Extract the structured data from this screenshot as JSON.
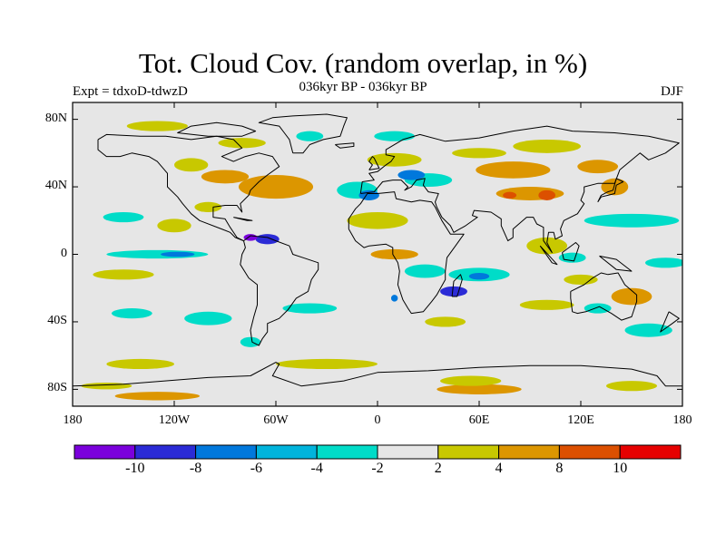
{
  "header": {
    "title": "Tot. Cloud Cov. (random overlap, in %)",
    "subtitle": "036kyr BP - 036kyr BP",
    "experiment": "Expt = tdxoD-tdwzD",
    "season": "DJF"
  },
  "map": {
    "projection": "cylindrical-equidistant",
    "background_color": "#e6e6e6",
    "lon_range": [
      -180,
      180
    ],
    "lat_range": [
      -90,
      90
    ],
    "lat_ticks": [
      {
        "value": 80,
        "label": "80N"
      },
      {
        "value": 40,
        "label": "40N"
      },
      {
        "value": 0,
        "label": "0"
      },
      {
        "value": -40,
        "label": "40S"
      },
      {
        "value": -80,
        "label": "80S"
      }
    ],
    "lon_ticks": [
      {
        "value": -180,
        "label": "180"
      },
      {
        "value": -120,
        "label": "120W"
      },
      {
        "value": -60,
        "label": "60W"
      },
      {
        "value": 0,
        "label": "0"
      },
      {
        "value": 60,
        "label": "60E"
      },
      {
        "value": 120,
        "label": "120E"
      },
      {
        "value": 180,
        "label": "180"
      }
    ]
  },
  "colorbar": {
    "colors": [
      "#7b00dc",
      "#2b2bd6",
      "#0078dc",
      "#00b4dc",
      "#00dcc8",
      "#e6e6e6",
      "#c8c800",
      "#dc9600",
      "#dc5000",
      "#e60000"
    ],
    "labels": [
      "-10",
      "-8",
      "-6",
      "-4",
      "-2",
      "2",
      "4",
      "8",
      "10"
    ]
  },
  "anomalies": [
    {
      "lon": -60,
      "lat": 40,
      "rx": 22,
      "ry": 7,
      "color": "#dc9600"
    },
    {
      "lon": -90,
      "lat": 46,
      "rx": 14,
      "ry": 4,
      "color": "#dc9600"
    },
    {
      "lon": -110,
      "lat": 53,
      "rx": 10,
      "ry": 4,
      "color": "#c8c800"
    },
    {
      "lon": -80,
      "lat": 66,
      "rx": 14,
      "ry": 3,
      "color": "#c8c800"
    },
    {
      "lon": -130,
      "lat": 76,
      "rx": 18,
      "ry": 3,
      "color": "#c8c800"
    },
    {
      "lon": -40,
      "lat": 70,
      "rx": 8,
      "ry": 3,
      "color": "#00dcc8"
    },
    {
      "lon": -150,
      "lat": 22,
      "rx": 12,
      "ry": 3,
      "color": "#00dcc8"
    },
    {
      "lon": -120,
      "lat": 17,
      "rx": 10,
      "ry": 4,
      "color": "#c8c800"
    },
    {
      "lon": -100,
      "lat": 28,
      "rx": 8,
      "ry": 3,
      "color": "#c8c800"
    },
    {
      "lon": -130,
      "lat": 0,
      "rx": 30,
      "ry": 2.5,
      "color": "#00dcc8"
    },
    {
      "lon": -118,
      "lat": 0,
      "rx": 10,
      "ry": 1.5,
      "color": "#0078dc"
    },
    {
      "lon": -65,
      "lat": 9,
      "rx": 7,
      "ry": 3,
      "color": "#2b2bd6"
    },
    {
      "lon": -75,
      "lat": 10,
      "rx": 4,
      "ry": 2,
      "color": "#7b00dc"
    },
    {
      "lon": -150,
      "lat": -12,
      "rx": 18,
      "ry": 3,
      "color": "#c8c800"
    },
    {
      "lon": -145,
      "lat": -35,
      "rx": 12,
      "ry": 3,
      "color": "#00dcc8"
    },
    {
      "lon": -100,
      "lat": -38,
      "rx": 14,
      "ry": 4,
      "color": "#00dcc8"
    },
    {
      "lon": -40,
      "lat": -32,
      "rx": 16,
      "ry": 3,
      "color": "#00dcc8"
    },
    {
      "lon": -140,
      "lat": -65,
      "rx": 20,
      "ry": 3,
      "color": "#c8c800"
    },
    {
      "lon": -30,
      "lat": -65,
      "rx": 30,
      "ry": 3,
      "color": "#c8c800"
    },
    {
      "lon": -75,
      "lat": -52,
      "rx": 6,
      "ry": 3,
      "color": "#00dcc8"
    },
    {
      "lon": -160,
      "lat": -78,
      "rx": 15,
      "ry": 2,
      "color": "#c8c800"
    },
    {
      "lon": -130,
      "lat": -84,
      "rx": 25,
      "ry": 2.5,
      "color": "#dc9600"
    },
    {
      "lon": 60,
      "lat": -80,
      "rx": 25,
      "ry": 3,
      "color": "#dc9600"
    },
    {
      "lon": 55,
      "lat": -75,
      "rx": 18,
      "ry": 3,
      "color": "#c8c800"
    },
    {
      "lon": 150,
      "lat": -78,
      "rx": 15,
      "ry": 3,
      "color": "#c8c800"
    },
    {
      "lon": -12,
      "lat": 38,
      "rx": 12,
      "ry": 5,
      "color": "#00dcc8"
    },
    {
      "lon": -5,
      "lat": 35,
      "rx": 6,
      "ry": 3,
      "color": "#0078dc"
    },
    {
      "lon": 10,
      "lat": 56,
      "rx": 16,
      "ry": 4,
      "color": "#c8c800"
    },
    {
      "lon": 10,
      "lat": 70,
      "rx": 12,
      "ry": 3,
      "color": "#00dcc8"
    },
    {
      "lon": 30,
      "lat": 44,
      "rx": 14,
      "ry": 4,
      "color": "#00dcc8"
    },
    {
      "lon": 20,
      "lat": 47,
      "rx": 8,
      "ry": 3,
      "color": "#0078dc"
    },
    {
      "lon": 80,
      "lat": 50,
      "rx": 22,
      "ry": 5,
      "color": "#dc9600"
    },
    {
      "lon": 60,
      "lat": 60,
      "rx": 16,
      "ry": 3,
      "color": "#c8c800"
    },
    {
      "lon": 100,
      "lat": 64,
      "rx": 20,
      "ry": 4,
      "color": "#c8c800"
    },
    {
      "lon": 130,
      "lat": 52,
      "rx": 12,
      "ry": 4,
      "color": "#dc9600"
    },
    {
      "lon": 90,
      "lat": 36,
      "rx": 20,
      "ry": 4,
      "color": "#dc9600"
    },
    {
      "lon": 100,
      "lat": 35,
      "rx": 5,
      "ry": 3,
      "color": "#dc5000"
    },
    {
      "lon": 78,
      "lat": 35,
      "rx": 4,
      "ry": 2,
      "color": "#dc5000"
    },
    {
      "lon": 140,
      "lat": 40,
      "rx": 8,
      "ry": 5,
      "color": "#dc9600"
    },
    {
      "lon": 150,
      "lat": 20,
      "rx": 28,
      "ry": 4,
      "color": "#00dcc8"
    },
    {
      "lon": 170,
      "lat": -5,
      "rx": 12,
      "ry": 3,
      "color": "#00dcc8"
    },
    {
      "lon": 0,
      "lat": 20,
      "rx": 18,
      "ry": 5,
      "color": "#c8c800"
    },
    {
      "lon": 10,
      "lat": 0,
      "rx": 14,
      "ry": 3,
      "color": "#dc9600"
    },
    {
      "lon": 28,
      "lat": -10,
      "rx": 12,
      "ry": 4,
      "color": "#00dcc8"
    },
    {
      "lon": 60,
      "lat": -12,
      "rx": 18,
      "ry": 4,
      "color": "#00dcc8"
    },
    {
      "lon": 60,
      "lat": -13,
      "rx": 6,
      "ry": 2,
      "color": "#0078dc"
    },
    {
      "lon": 45,
      "lat": -22,
      "rx": 8,
      "ry": 3,
      "color": "#2b2bd6"
    },
    {
      "lon": 10,
      "lat": -26,
      "rx": 2,
      "ry": 2,
      "color": "#0078dc"
    },
    {
      "lon": 40,
      "lat": -40,
      "rx": 12,
      "ry": 3,
      "color": "#c8c800"
    },
    {
      "lon": 100,
      "lat": -30,
      "rx": 16,
      "ry": 3,
      "color": "#c8c800"
    },
    {
      "lon": 150,
      "lat": -25,
      "rx": 12,
      "ry": 5,
      "color": "#dc9600"
    },
    {
      "lon": 120,
      "lat": -15,
      "rx": 10,
      "ry": 3,
      "color": "#c8c800"
    },
    {
      "lon": 130,
      "lat": -32,
      "rx": 8,
      "ry": 3,
      "color": "#00dcc8"
    },
    {
      "lon": 100,
      "lat": 5,
      "rx": 12,
      "ry": 5,
      "color": "#c8c800"
    },
    {
      "lon": 115,
      "lat": -2,
      "rx": 8,
      "ry": 3,
      "color": "#00dcc8"
    },
    {
      "lon": 160,
      "lat": -45,
      "rx": 14,
      "ry": 4,
      "color": "#00dcc8"
    }
  ],
  "coastlines": [
    [
      [
        -165,
        68
      ],
      [
        -160,
        71
      ],
      [
        -140,
        70
      ],
      [
        -125,
        70
      ],
      [
        -110,
        68
      ],
      [
        -95,
        70
      ],
      [
        -85,
        68
      ],
      [
        -80,
        63
      ],
      [
        -92,
        58
      ],
      [
        -85,
        55
      ],
      [
        -78,
        58
      ],
      [
        -70,
        60
      ],
      [
        -62,
        58
      ],
      [
        -58,
        52
      ],
      [
        -65,
        47
      ],
      [
        -70,
        43
      ],
      [
        -75,
        38
      ],
      [
        -76,
        35
      ],
      [
        -81,
        30
      ],
      [
        -80,
        25
      ],
      [
        -83,
        29
      ],
      [
        -90,
        29
      ],
      [
        -97,
        28
      ],
      [
        -97,
        22
      ],
      [
        -90,
        21
      ],
      [
        -87,
        16
      ],
      [
        -83,
        10
      ],
      [
        -79,
        8
      ],
      [
        -84,
        10
      ],
      [
        -87,
        13
      ],
      [
        -92,
        15
      ],
      [
        -105,
        20
      ],
      [
        -110,
        24
      ],
      [
        -115,
        30
      ],
      [
        -118,
        34
      ],
      [
        -124,
        40
      ],
      [
        -124,
        48
      ],
      [
        -130,
        55
      ],
      [
        -135,
        58
      ],
      [
        -145,
        60
      ],
      [
        -152,
        58
      ],
      [
        -160,
        58
      ],
      [
        -165,
        62
      ],
      [
        -165,
        68
      ]
    ],
    [
      [
        -79,
        8
      ],
      [
        -75,
        11
      ],
      [
        -65,
        10
      ],
      [
        -60,
        8
      ],
      [
        -52,
        5
      ],
      [
        -50,
        0
      ],
      [
        -44,
        -2
      ],
      [
        -35,
        -5
      ],
      [
        -35,
        -9
      ],
      [
        -39,
        -15
      ],
      [
        -41,
        -22
      ],
      [
        -48,
        -26
      ],
      [
        -53,
        -33
      ],
      [
        -58,
        -38
      ],
      [
        -65,
        -41
      ],
      [
        -65,
        -46
      ],
      [
        -68,
        -50
      ],
      [
        -70,
        -54
      ],
      [
        -74,
        -52
      ],
      [
        -75,
        -45
      ],
      [
        -73,
        -37
      ],
      [
        -71,
        -30
      ],
      [
        -71,
        -18
      ],
      [
        -76,
        -14
      ],
      [
        -81,
        -6
      ],
      [
        -80,
        0
      ],
      [
        -78,
        4
      ],
      [
        -79,
        8
      ]
    ],
    [
      [
        -17,
        15
      ],
      [
        -17,
        21
      ],
      [
        -13,
        27
      ],
      [
        -10,
        30
      ],
      [
        -6,
        36
      ],
      [
        0,
        36
      ],
      [
        10,
        37
      ],
      [
        11,
        33
      ],
      [
        20,
        31
      ],
      [
        25,
        32
      ],
      [
        32,
        31
      ],
      [
        34,
        28
      ],
      [
        38,
        20
      ],
      [
        43,
        12
      ],
      [
        51,
        12
      ],
      [
        46,
        5
      ],
      [
        41,
        -2
      ],
      [
        40,
        -10
      ],
      [
        40,
        -15
      ],
      [
        35,
        -24
      ],
      [
        32,
        -28
      ],
      [
        27,
        -34
      ],
      [
        20,
        -35
      ],
      [
        18,
        -32
      ],
      [
        15,
        -27
      ],
      [
        12,
        -18
      ],
      [
        13,
        -10
      ],
      [
        12,
        -5
      ],
      [
        9,
        0
      ],
      [
        9,
        4
      ],
      [
        5,
        6
      ],
      [
        -5,
        5
      ],
      [
        -8,
        4
      ],
      [
        -13,
        8
      ],
      [
        -17,
        15
      ]
    ],
    [
      [
        -10,
        36
      ],
      [
        -9,
        43
      ],
      [
        -2,
        44
      ],
      [
        -5,
        48
      ],
      [
        0,
        49
      ],
      [
        5,
        53
      ],
      [
        8,
        55
      ],
      [
        10,
        58
      ],
      [
        5,
        59
      ],
      [
        5,
        62
      ],
      [
        15,
        68
      ],
      [
        25,
        71
      ],
      [
        40,
        67
      ],
      [
        60,
        69
      ],
      [
        80,
        73
      ],
      [
        100,
        76
      ],
      [
        115,
        73
      ],
      [
        140,
        72
      ],
      [
        160,
        70
      ],
      [
        178,
        66
      ],
      [
        170,
        60
      ],
      [
        160,
        56
      ],
      [
        155,
        60
      ],
      [
        143,
        50
      ],
      [
        140,
        42
      ],
      [
        130,
        42
      ],
      [
        122,
        40
      ],
      [
        122,
        37
      ],
      [
        120,
        32
      ],
      [
        122,
        30
      ],
      [
        118,
        24
      ],
      [
        110,
        20
      ],
      [
        108,
        15
      ],
      [
        109,
        11
      ],
      [
        105,
        9
      ],
      [
        104,
        13
      ],
      [
        101,
        13
      ],
      [
        100,
        7
      ],
      [
        103,
        1
      ],
      [
        98,
        8
      ],
      [
        98,
        16
      ],
      [
        94,
        18
      ],
      [
        92,
        22
      ],
      [
        88,
        22
      ],
      [
        80,
        15
      ],
      [
        80,
        10
      ],
      [
        77,
        8
      ],
      [
        73,
        17
      ],
      [
        73,
        21
      ],
      [
        67,
        25
      ],
      [
        57,
        26
      ],
      [
        56,
        23
      ],
      [
        59,
        22
      ],
      [
        52,
        17
      ],
      [
        45,
        13
      ],
      [
        43,
        17
      ],
      [
        38,
        22
      ],
      [
        35,
        28
      ],
      [
        34,
        31
      ],
      [
        36,
        36
      ],
      [
        30,
        37
      ],
      [
        27,
        41
      ],
      [
        28,
        45
      ],
      [
        23,
        44
      ],
      [
        20,
        40
      ],
      [
        16,
        38
      ],
      [
        18,
        40
      ],
      [
        14,
        44
      ],
      [
        12,
        44
      ],
      [
        9,
        44
      ],
      [
        3,
        43
      ],
      [
        -2,
        37
      ],
      [
        -10,
        36
      ]
    ],
    [
      [
        114,
        -22
      ],
      [
        114,
        -26
      ],
      [
        115,
        -34
      ],
      [
        118,
        -35
      ],
      [
        123,
        -34
      ],
      [
        131,
        -31
      ],
      [
        138,
        -35
      ],
      [
        144,
        -39
      ],
      [
        150,
        -37
      ],
      [
        153,
        -28
      ],
      [
        153,
        -24
      ],
      [
        146,
        -18
      ],
      [
        142,
        -11
      ],
      [
        136,
        -12
      ],
      [
        132,
        -11
      ],
      [
        127,
        -14
      ],
      [
        122,
        -18
      ],
      [
        114,
        -22
      ]
    ],
    [
      [
        -50,
        60
      ],
      [
        -44,
        60
      ],
      [
        -40,
        65
      ],
      [
        -32,
        68
      ],
      [
        -22,
        70
      ],
      [
        -20,
        76
      ],
      [
        -18,
        81
      ],
      [
        -30,
        83
      ],
      [
        -50,
        82
      ],
      [
        -62,
        81
      ],
      [
        -70,
        78
      ],
      [
        -58,
        76
      ],
      [
        -55,
        72
      ],
      [
        -52,
        68
      ],
      [
        -50,
        60
      ]
    ],
    [
      [
        -180,
        -78
      ],
      [
        -150,
        -77
      ],
      [
        -100,
        -73
      ],
      [
        -75,
        -72
      ],
      [
        -60,
        -64
      ],
      [
        -58,
        -65
      ],
      [
        -62,
        -72
      ],
      [
        -45,
        -78
      ],
      [
        -20,
        -75
      ],
      [
        0,
        -70
      ],
      [
        30,
        -69
      ],
      [
        60,
        -67
      ],
      [
        90,
        -66
      ],
      [
        120,
        -66
      ],
      [
        150,
        -68
      ],
      [
        165,
        -72
      ],
      [
        170,
        -78
      ],
      [
        180,
        -78
      ]
    ],
    [
      [
        -5,
        50
      ],
      [
        -3,
        53
      ],
      [
        -5,
        55
      ],
      [
        -3,
        58
      ],
      [
        -2,
        57
      ],
      [
        0,
        53
      ],
      [
        1,
        51
      ],
      [
        -5,
        50
      ]
    ],
    [
      [
        130,
        31
      ],
      [
        132,
        34
      ],
      [
        136,
        35
      ],
      [
        140,
        36
      ],
      [
        141,
        41
      ],
      [
        145,
        43
      ],
      [
        141,
        45
      ],
      [
        139,
        38
      ],
      [
        136,
        37
      ],
      [
        132,
        35
      ],
      [
        130,
        31
      ]
    ],
    [
      [
        44,
        -25
      ],
      [
        47,
        -25
      ],
      [
        50,
        -15
      ],
      [
        49,
        -12
      ],
      [
        45,
        -16
      ],
      [
        44,
        -25
      ]
    ],
    [
      [
        96,
        5
      ],
      [
        106,
        -6
      ],
      [
        103,
        -5
      ],
      [
        96,
        5
      ]
    ],
    [
      [
        109,
        1
      ],
      [
        117,
        7
      ],
      [
        119,
        5
      ],
      [
        116,
        -4
      ],
      [
        110,
        -3
      ],
      [
        109,
        1
      ]
    ],
    [
      [
        131,
        -1
      ],
      [
        141,
        -3
      ],
      [
        150,
        -10
      ],
      [
        141,
        -9
      ],
      [
        131,
        -1
      ]
    ],
    [
      [
        -85,
        22
      ],
      [
        -74,
        20
      ],
      [
        -77,
        20
      ],
      [
        -85,
        22
      ]
    ],
    [
      [
        172,
        -34
      ],
      [
        178,
        -38
      ],
      [
        174,
        -41
      ],
      [
        167,
        -46
      ],
      [
        172,
        -34
      ]
    ],
    [
      [
        -25,
        65
      ],
      [
        -14,
        66
      ],
      [
        -14,
        64
      ],
      [
        -22,
        63
      ],
      [
        -25,
        65
      ]
    ],
    [
      [
        -100,
        70
      ],
      [
        -80,
        70
      ],
      [
        -72,
        73
      ],
      [
        -80,
        76
      ],
      [
        -95,
        78
      ],
      [
        -110,
        76
      ],
      [
        -118,
        72
      ],
      [
        -100,
        70
      ]
    ]
  ]
}
